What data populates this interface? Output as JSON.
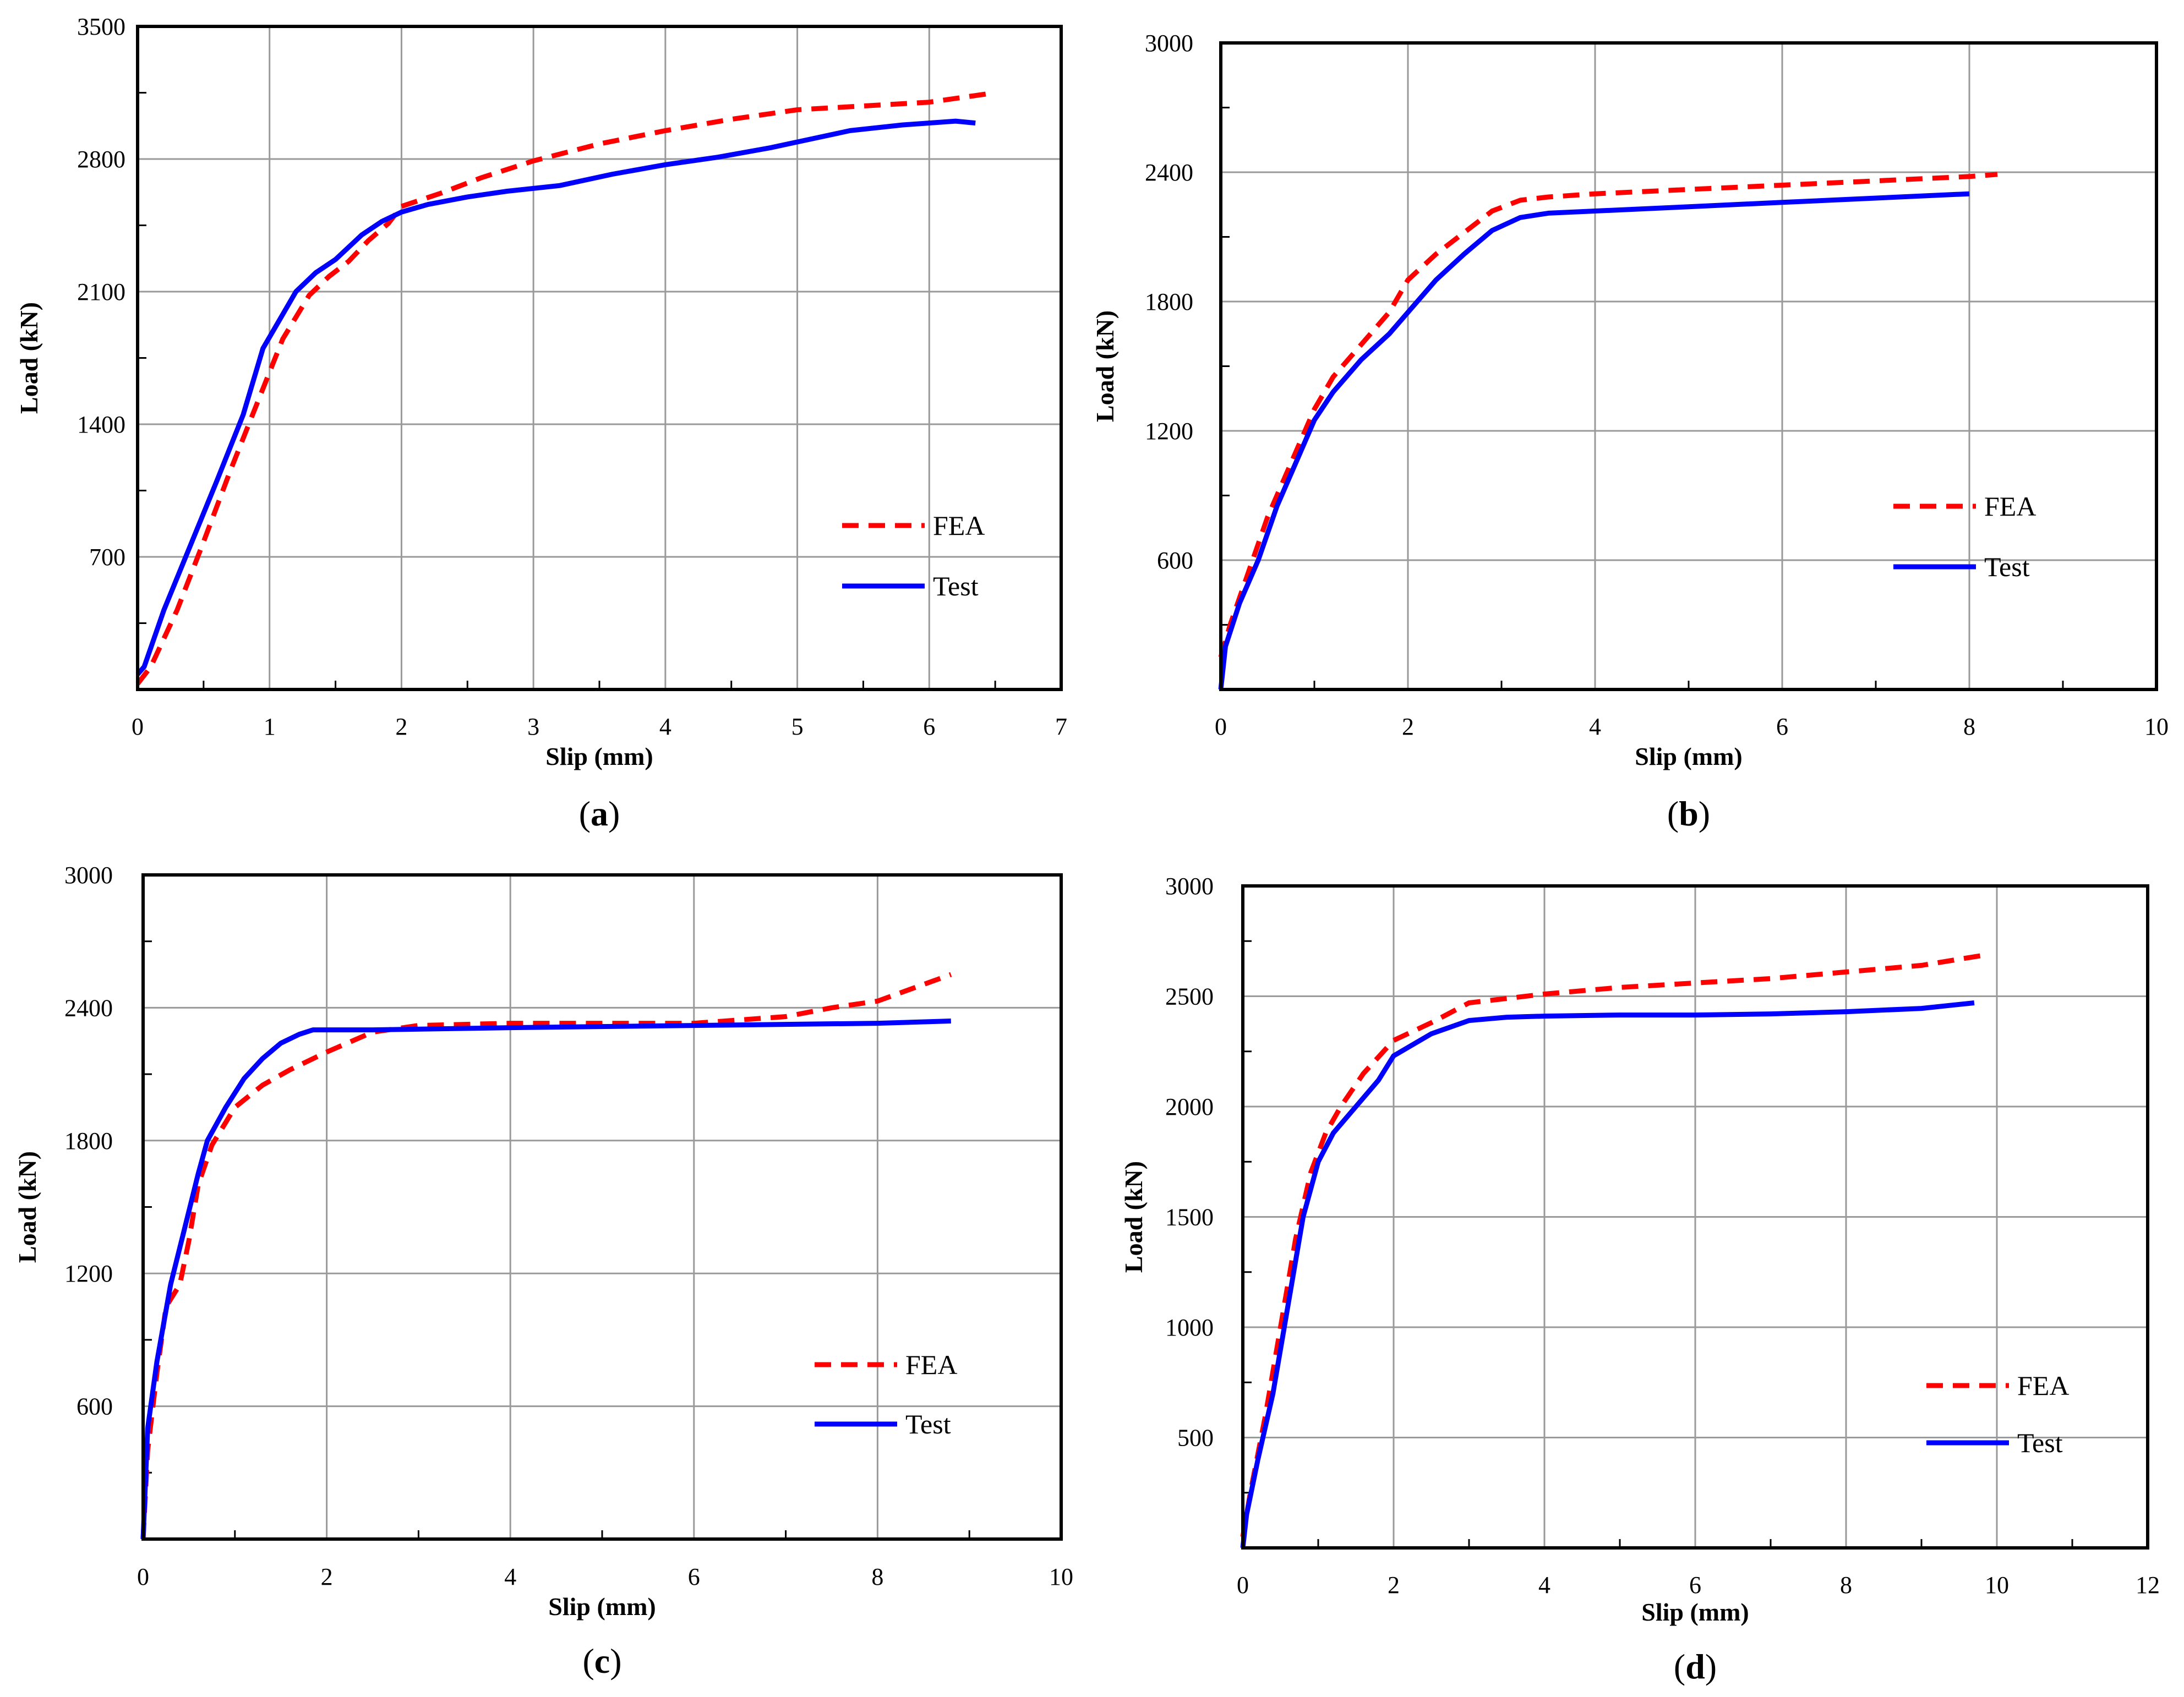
{
  "figure": {
    "panels": [
      {
        "id": "a",
        "caption_open": "(",
        "caption_letter": "a",
        "caption_close": ")"
      },
      {
        "id": "b",
        "caption_open": "(",
        "caption_letter": "b",
        "caption_close": ")"
      },
      {
        "id": "c",
        "caption_open": "(",
        "caption_letter": "c",
        "caption_close": ")"
      },
      {
        "id": "d",
        "caption_open": "(",
        "caption_letter": "d",
        "caption_close": ")"
      }
    ]
  },
  "colors": {
    "fea": "#ff0000",
    "test": "#0000ff",
    "grid": "#9a9a9a",
    "frame": "#000000"
  },
  "chart_data": [
    {
      "panel": "a",
      "type": "line",
      "xlabel": "Slip (mm)",
      "ylabel": "Load (kN)",
      "xlim": [
        0,
        7
      ],
      "ylim": [
        0,
        3500
      ],
      "xticks": [
        0,
        1,
        2,
        3,
        4,
        5,
        6,
        7
      ],
      "yticks": [
        700,
        1400,
        2100,
        2800,
        3500
      ],
      "grid": true,
      "legend": [
        "FEA",
        "Test"
      ],
      "legend_position": "right",
      "series": [
        {
          "name": "FEA",
          "style": "dashed",
          "color": "#ff0000",
          "x": [
            0,
            0.1,
            0.3,
            0.5,
            0.7,
            0.9,
            1.1,
            1.3,
            1.45,
            1.6,
            1.75,
            1.9,
            2.0,
            2.3,
            2.6,
            3.0,
            3.5,
            4.0,
            4.5,
            5.0,
            5.5,
            6.0,
            6.5
          ],
          "y": [
            30,
            120,
            420,
            780,
            1150,
            1500,
            1850,
            2080,
            2180,
            2260,
            2370,
            2460,
            2550,
            2620,
            2700,
            2790,
            2880,
            2950,
            3010,
            3060,
            3080,
            3100,
            3150
          ]
        },
        {
          "name": "Test",
          "style": "solid",
          "color": "#0000ff",
          "x": [
            0,
            0.05,
            0.2,
            0.4,
            0.6,
            0.8,
            0.95,
            1.05,
            1.2,
            1.35,
            1.5,
            1.7,
            1.85,
            2.0,
            2.2,
            2.5,
            2.8,
            3.2,
            3.6,
            4.0,
            4.4,
            4.8,
            5.0,
            5.4,
            5.8,
            6.2,
            6.35
          ],
          "y": [
            80,
            120,
            420,
            760,
            1100,
            1450,
            1800,
            1920,
            2100,
            2200,
            2270,
            2400,
            2470,
            2520,
            2560,
            2600,
            2630,
            2660,
            2720,
            2770,
            2810,
            2860,
            2890,
            2950,
            2980,
            3000,
            2990
          ]
        }
      ]
    },
    {
      "panel": "b",
      "type": "line",
      "xlabel": "Slip (mm)",
      "ylabel": "Load (kN)",
      "xlim": [
        0,
        10
      ],
      "ylim": [
        0,
        3000
      ],
      "xticks": [
        0,
        2,
        4,
        6,
        8,
        10
      ],
      "yticks": [
        600,
        1200,
        1800,
        2400,
        3000
      ],
      "grid": true,
      "legend": [
        "FEA",
        "Test"
      ],
      "legend_position": "right",
      "series": [
        {
          "name": "FEA",
          "style": "dashed",
          "color": "#ff0000",
          "x": [
            0,
            0.1,
            0.3,
            0.5,
            0.8,
            1.0,
            1.2,
            1.5,
            1.8,
            2.0,
            2.3,
            2.6,
            2.9,
            3.2,
            3.5,
            4.0,
            5.0,
            6.0,
            7.0,
            8.0,
            8.3
          ],
          "y": [
            150,
            300,
            550,
            800,
            1100,
            1300,
            1450,
            1600,
            1750,
            1900,
            2020,
            2120,
            2220,
            2270,
            2285,
            2300,
            2320,
            2340,
            2360,
            2380,
            2390
          ]
        },
        {
          "name": "Test",
          "style": "solid",
          "color": "#0000ff",
          "x": [
            0,
            0.05,
            0.2,
            0.4,
            0.6,
            0.8,
            1.0,
            1.2,
            1.5,
            1.8,
            2.0,
            2.3,
            2.6,
            2.9,
            3.2,
            3.5,
            4.0,
            5.0,
            6.0,
            7.0,
            8.0
          ],
          "y": [
            0,
            200,
            400,
            600,
            850,
            1050,
            1250,
            1380,
            1530,
            1650,
            1750,
            1900,
            2020,
            2130,
            2190,
            2210,
            2220,
            2240,
            2260,
            2280,
            2300
          ]
        }
      ]
    },
    {
      "panel": "c",
      "type": "line",
      "xlabel": "Slip (mm)",
      "ylabel": "Load (kN)",
      "xlim": [
        0,
        10
      ],
      "ylim": [
        0,
        3000
      ],
      "xticks": [
        0,
        2,
        4,
        6,
        8,
        10
      ],
      "yticks": [
        600,
        1200,
        1800,
        2400,
        3000
      ],
      "grid": true,
      "legend": [
        "FEA",
        "Test"
      ],
      "legend_position": "right",
      "series": [
        {
          "name": "FEA",
          "style": "dashed",
          "color": "#ff0000",
          "x": [
            0,
            0.05,
            0.15,
            0.25,
            0.4,
            0.5,
            0.6,
            0.75,
            1.0,
            1.3,
            1.6,
            2.0,
            2.5,
            3.0,
            4.0,
            5.0,
            6.0,
            7.0,
            7.5,
            8.0,
            8.8
          ],
          "y": [
            0,
            400,
            750,
            1050,
            1150,
            1350,
            1600,
            1780,
            1950,
            2050,
            2120,
            2200,
            2290,
            2320,
            2330,
            2330,
            2330,
            2360,
            2400,
            2430,
            2550
          ]
        },
        {
          "name": "Test",
          "style": "solid",
          "color": "#0000ff",
          "x": [
            0,
            0.05,
            0.15,
            0.3,
            0.45,
            0.6,
            0.7,
            0.9,
            1.1,
            1.3,
            1.5,
            1.7,
            1.85,
            2.5,
            4.0,
            6.0,
            8.0,
            8.8
          ],
          "y": [
            0,
            500,
            800,
            1150,
            1400,
            1650,
            1800,
            1950,
            2080,
            2170,
            2240,
            2280,
            2300,
            2300,
            2310,
            2320,
            2330,
            2340
          ]
        }
      ]
    },
    {
      "panel": "d",
      "type": "line",
      "xlabel": "Slip (mm)",
      "ylabel": "Load (kN)",
      "xlim": [
        0,
        12
      ],
      "ylim": [
        0,
        3000
      ],
      "xticks": [
        0,
        2,
        4,
        6,
        8,
        10,
        12
      ],
      "yticks": [
        500,
        1000,
        1500,
        2000,
        2500,
        3000
      ],
      "grid": true,
      "legend": [
        "FEA",
        "Test"
      ],
      "legend_position": "right",
      "series": [
        {
          "name": "FEA",
          "style": "dashed",
          "color": "#ff0000",
          "x": [
            0,
            0.1,
            0.3,
            0.5,
            0.7,
            0.9,
            1.1,
            1.3,
            1.6,
            2.0,
            2.5,
            3.0,
            4.0,
            5.0,
            6.0,
            7.0,
            8.0,
            9.0,
            9.9
          ],
          "y": [
            50,
            250,
            600,
            1000,
            1400,
            1700,
            1880,
            2000,
            2150,
            2300,
            2380,
            2470,
            2510,
            2540,
            2560,
            2580,
            2610,
            2640,
            2690
          ]
        },
        {
          "name": "Test",
          "style": "solid",
          "color": "#0000ff",
          "x": [
            0,
            0.05,
            0.2,
            0.4,
            0.6,
            0.8,
            1.0,
            1.2,
            1.5,
            1.8,
            2.0,
            2.5,
            3.0,
            3.5,
            4.0,
            5.0,
            6.0,
            7.0,
            8.0,
            9.0,
            9.7
          ],
          "y": [
            0,
            150,
            400,
            700,
            1100,
            1500,
            1750,
            1880,
            2000,
            2120,
            2230,
            2330,
            2390,
            2405,
            2410,
            2415,
            2415,
            2420,
            2430,
            2445,
            2470
          ]
        }
      ]
    }
  ]
}
